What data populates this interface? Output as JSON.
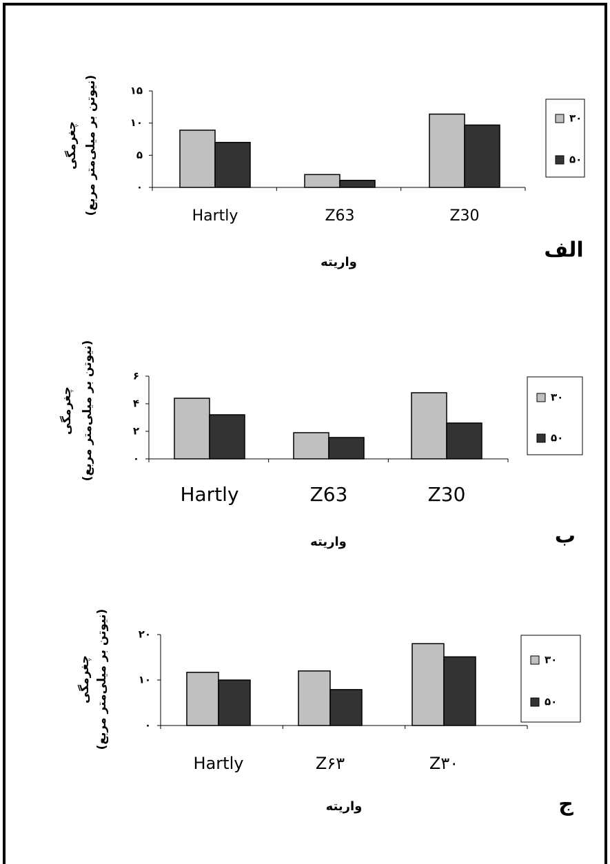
{
  "chart_data": [
    {
      "type": "bar",
      "panel_label": "الف",
      "xlabel": "واریته",
      "ylabel": [
        "چغرمگی",
        "(نیوتن بر میلی‌متر مربع)"
      ],
      "categories": [
        "Hartly",
        "Z63",
        "Z30"
      ],
      "ylim": [
        0,
        15
      ],
      "yticks": [
        0,
        5,
        10,
        15
      ],
      "ytick_labels": [
        "۰",
        "۵",
        "۱۰",
        "۱۵"
      ],
      "series": [
        {
          "name": "۳۰",
          "values": [
            8.9,
            2.0,
            11.4
          ],
          "color": "#c0c0c0"
        },
        {
          "name": "۵۰",
          "values": [
            7.0,
            1.1,
            9.7
          ],
          "color": "#333333"
        }
      ],
      "legend": "right",
      "grid": false
    },
    {
      "type": "bar",
      "panel_label": "ب",
      "xlabel": "واریته",
      "ylabel": [
        "چغرمگی",
        "(نیوتن بر میلی‌متر مربع)"
      ],
      "categories": [
        "Hartly",
        "Z63",
        "Z30"
      ],
      "ylim": [
        0,
        6
      ],
      "yticks": [
        0,
        2,
        4,
        6
      ],
      "ytick_labels": [
        "۰",
        "۲",
        "۴",
        "۶"
      ],
      "series": [
        {
          "name": "۳۰",
          "values": [
            4.4,
            1.9,
            4.8
          ],
          "color": "#c0c0c0"
        },
        {
          "name": "۵۰",
          "values": [
            3.2,
            1.55,
            2.6
          ],
          "color": "#333333"
        }
      ],
      "legend": "right",
      "grid": false
    },
    {
      "type": "bar",
      "panel_label": "ج",
      "xlabel": "واریته",
      "ylabel": [
        "چغرمگی",
        "(نیوتن بر میلی‌متر مربع)"
      ],
      "categories": [
        "Hartly",
        "Z۶۳",
        "Z۳۰"
      ],
      "ylim": [
        0,
        20
      ],
      "yticks": [
        0,
        10,
        20
      ],
      "ytick_labels": [
        "۰",
        "۱۰",
        "۲۰"
      ],
      "series": [
        {
          "name": "۳۰",
          "values": [
            11.7,
            12.0,
            18.0
          ],
          "color": "#c0c0c0"
        },
        {
          "name": "۵۰",
          "values": [
            10.0,
            7.9,
            15.1
          ],
          "color": "#333333"
        }
      ],
      "legend": "right",
      "grid": false
    }
  ]
}
